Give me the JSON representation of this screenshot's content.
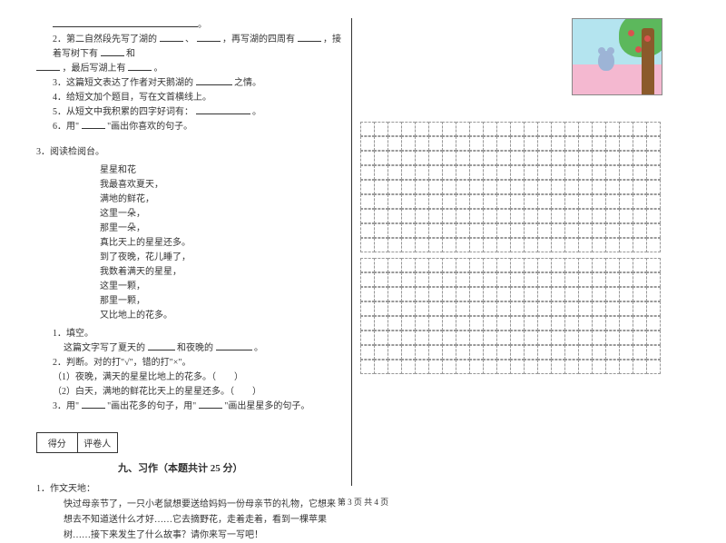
{
  "left": {
    "q2": {
      "prefix": "2．第二自然段先写了湖的",
      "mid1": "、",
      "mid2": "，再写湖的四周有",
      "mid3": "，接着写树下有",
      "mid4": "和",
      "suffix": "，最后写湖上有",
      "end": "。"
    },
    "q3": {
      "text": "3．这篇短文表达了作者对天鹅湖的",
      "end": "之情。"
    },
    "q4": "4．给短文加个题目，写在文首横线上。",
    "q5": {
      "text": "5．从短文中我积累的四字好词有：",
      "end": "。"
    },
    "q6": {
      "pre": "6．用\"",
      "mid": "\"画出你喜欢的句子。"
    },
    "reading_label": "3．阅读检阅台。",
    "poem_title": "星星和花",
    "poem_lines": [
      "我最喜欢夏天，",
      "满地的鲜花，",
      "这里一朵，",
      "那里一朵，",
      "真比天上的星星还多。",
      "到了夜晚，花儿睡了，",
      "我数着满天的星星，",
      "这里一颗，",
      "那里一颗，",
      "又比地上的花多。"
    ],
    "sub1_label": "1．填空。",
    "sub1_text_a": "这篇文字写了夏天的",
    "sub1_text_b": "和夜晚的",
    "sub1_end": "。",
    "sub2_label": "2．判断。对的打\"√\"，错的打\"×\"。",
    "sub2_items": [
      "（1）夜晚，满天的星星比地上的花多。（　　）",
      "（2）白天，满地的鲜花比天上的星星还多。（　　）"
    ],
    "sub3": {
      "a": "3．用\"",
      "b": "\"画出花多的句子，用\"",
      "c": "\"画出星星多的句子。"
    },
    "score_labels": [
      "得分",
      "评卷人"
    ],
    "section9": "九、习作（本题共计 25 分）",
    "writing_label": "1．作文天地：",
    "writing_text": "快过母亲节了，一只小老鼠想要送给妈妈一份母亲节的礼物，它想来想去不知道送什么才好……它去摘野花，走着走着，看到一棵苹果树……接下来发生了什么故事？请你来写一写吧！"
  },
  "footer": "第 3 页  共 4 页",
  "grid": {
    "cols": 22,
    "rows_block1": 9,
    "rows_block2": 8
  },
  "colors": {
    "text": "#333333",
    "border": "#333333",
    "grid_line": "#999999",
    "sky": "#b4e4ef",
    "ground": "#f4b8d0",
    "tree": "#5cb85c",
    "trunk": "#8b5a2b",
    "apple": "#d9534f",
    "mouse": "#9db4d6"
  }
}
